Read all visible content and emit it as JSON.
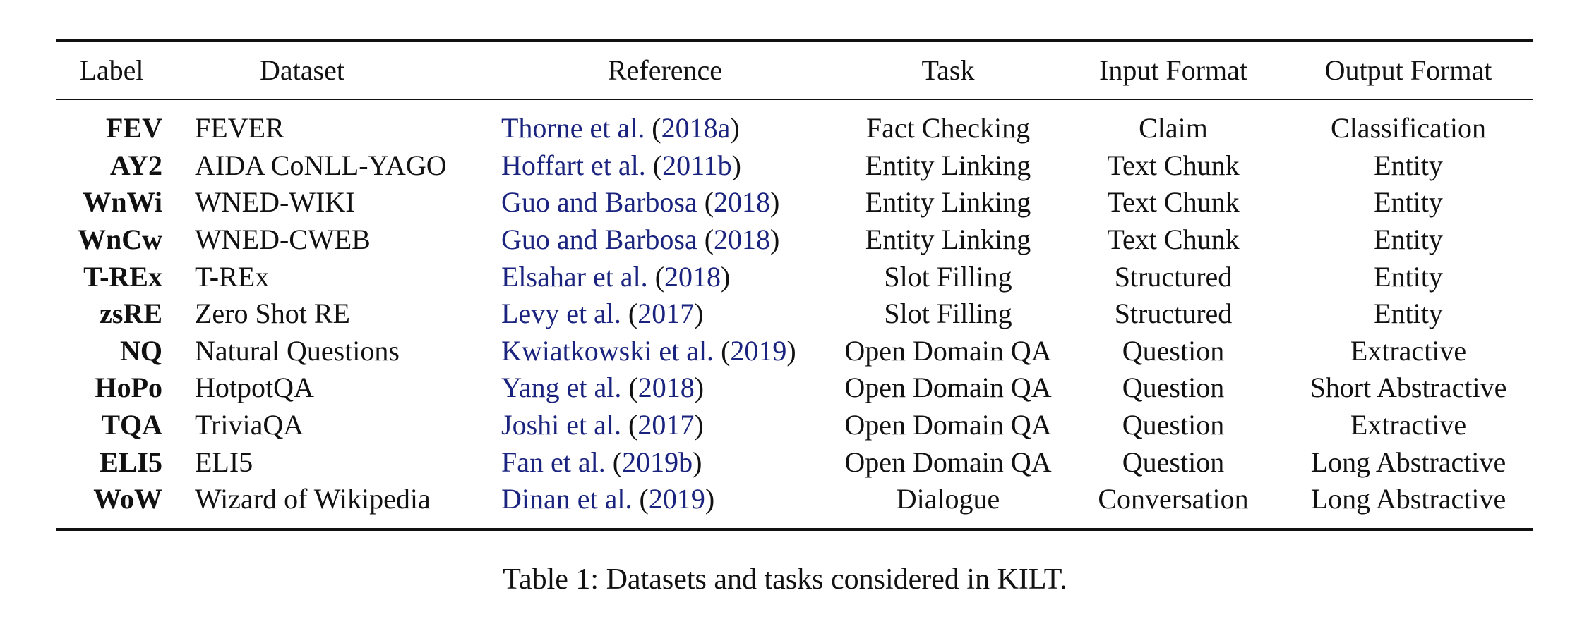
{
  "headers": {
    "label": "Label",
    "dataset": "Dataset",
    "reference": "Reference",
    "task": "Task",
    "input_format": "Input Format",
    "output_format": "Output Format"
  },
  "rows": [
    {
      "label": "FEV",
      "dataset": "FEVER",
      "ref_authors": "Thorne et al.",
      "ref_year": "2018a",
      "task": "Fact Checking",
      "input": "Claim",
      "output": "Classification"
    },
    {
      "label": "AY2",
      "dataset": "AIDA CoNLL-YAGO",
      "ref_authors": "Hoffart et al.",
      "ref_year": "2011b",
      "task": "Entity Linking",
      "input": "Text Chunk",
      "output": "Entity"
    },
    {
      "label": "WnWi",
      "dataset": "WNED-WIKI",
      "ref_authors": "Guo and Barbosa",
      "ref_year": "2018",
      "task": "Entity Linking",
      "input": "Text Chunk",
      "output": "Entity"
    },
    {
      "label": "WnCw",
      "dataset": "WNED-CWEB",
      "ref_authors": "Guo and Barbosa",
      "ref_year": "2018",
      "task": "Entity Linking",
      "input": "Text Chunk",
      "output": "Entity"
    },
    {
      "label": "T-REx",
      "dataset": "T-REx",
      "ref_authors": "Elsahar et al.",
      "ref_year": "2018",
      "task": "Slot Filling",
      "input": "Structured",
      "output": "Entity"
    },
    {
      "label": "zsRE",
      "dataset": "Zero Shot RE",
      "ref_authors": "Levy et al.",
      "ref_year": "2017",
      "task": "Slot Filling",
      "input": "Structured",
      "output": "Entity"
    },
    {
      "label": "NQ",
      "dataset": "Natural Questions",
      "ref_authors": "Kwiatkowski et al.",
      "ref_year": "2019",
      "task": "Open Domain QA",
      "input": "Question",
      "output": "Extractive"
    },
    {
      "label": "HoPo",
      "dataset": "HotpotQA",
      "ref_authors": "Yang et al.",
      "ref_year": "2018",
      "task": "Open Domain QA",
      "input": "Question",
      "output": "Short Abstractive"
    },
    {
      "label": "TQA",
      "dataset": "TriviaQA",
      "ref_authors": "Joshi et al.",
      "ref_year": "2017",
      "task": "Open Domain QA",
      "input": "Question",
      "output": "Extractive"
    },
    {
      "label": "ELI5",
      "dataset": "ELI5",
      "ref_authors": "Fan et al.",
      "ref_year": "2019b",
      "task": "Open Domain QA",
      "input": "Question",
      "output": "Long Abstractive"
    },
    {
      "label": "WoW",
      "dataset": "Wizard of Wikipedia",
      "ref_authors": "Dinan et al.",
      "ref_year": "2019",
      "task": "Dialogue",
      "input": "Conversation",
      "output": "Long Abstractive"
    }
  ],
  "caption": "Table 1: Datasets and tasks considered in KILT.",
  "colors": {
    "link": "#1a237e",
    "text": "#111111"
  }
}
